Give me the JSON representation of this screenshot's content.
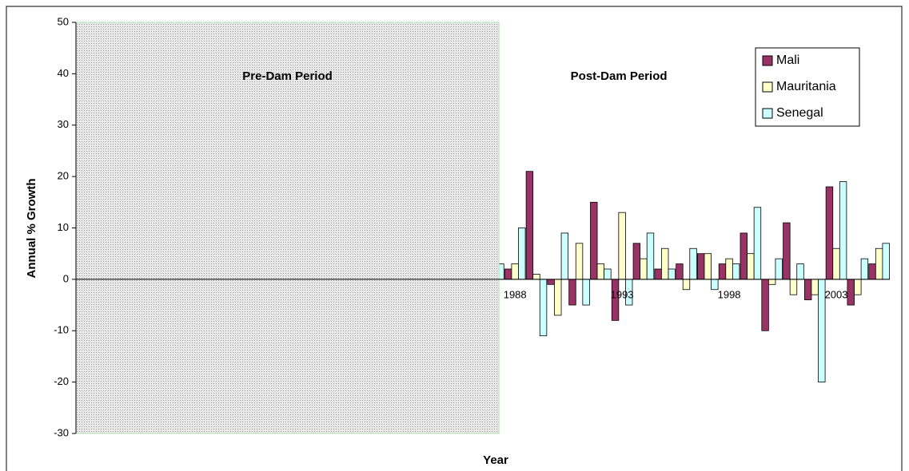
{
  "chart_data": {
    "type": "bar",
    "annotations": [
      "Pre-Dam Period",
      "Post-Dam Period"
    ],
    "x_label": "Year",
    "y_label": "Annual % Growth",
    "categories": [
      null,
      null,
      null,
      null,
      null,
      null,
      null,
      null,
      null,
      null,
      null,
      null,
      null,
      null,
      null,
      null,
      null,
      null,
      null,
      null,
      "1988",
      null,
      null,
      null,
      null,
      "1993",
      null,
      null,
      null,
      null,
      "1998",
      null,
      null,
      null,
      null,
      "2003",
      null,
      null
    ],
    "series": [
      {
        "name": "Mali",
        "color": "#993366",
        "values": [
          null,
          null,
          null,
          null,
          null,
          null,
          null,
          null,
          null,
          null,
          null,
          null,
          null,
          null,
          null,
          null,
          null,
          null,
          null,
          null,
          2,
          21,
          -1,
          -5,
          15,
          -8,
          7,
          2,
          3,
          5,
          3,
          9,
          -10,
          11,
          -4,
          18,
          -5,
          3
        ]
      },
      {
        "name": "Mauritania",
        "color": "#ffffcc",
        "values": [
          null,
          null,
          null,
          null,
          null,
          null,
          null,
          null,
          null,
          null,
          null,
          null,
          null,
          null,
          null,
          null,
          null,
          null,
          null,
          null,
          3,
          1,
          -7,
          7,
          3,
          13,
          4,
          6,
          -2,
          5,
          4,
          5,
          -1,
          -3,
          -3,
          6,
          -3,
          6
        ]
      },
      {
        "name": "Senegal",
        "color": "#ccffff",
        "values": [
          null,
          null,
          null,
          null,
          null,
          null,
          null,
          null,
          null,
          null,
          null,
          null,
          null,
          null,
          null,
          null,
          null,
          null,
          null,
          3,
          10,
          -11,
          9,
          -5,
          2,
          -5,
          9,
          2,
          6,
          -2,
          3,
          14,
          4,
          3,
          -20,
          19,
          4,
          7
        ]
      }
    ],
    "ylim": [
      -30,
      50
    ],
    "yticks": [
      -30,
      -20,
      -10,
      0,
      10,
      20,
      30,
      40,
      50
    ],
    "grid": false,
    "legend": "upper right"
  }
}
